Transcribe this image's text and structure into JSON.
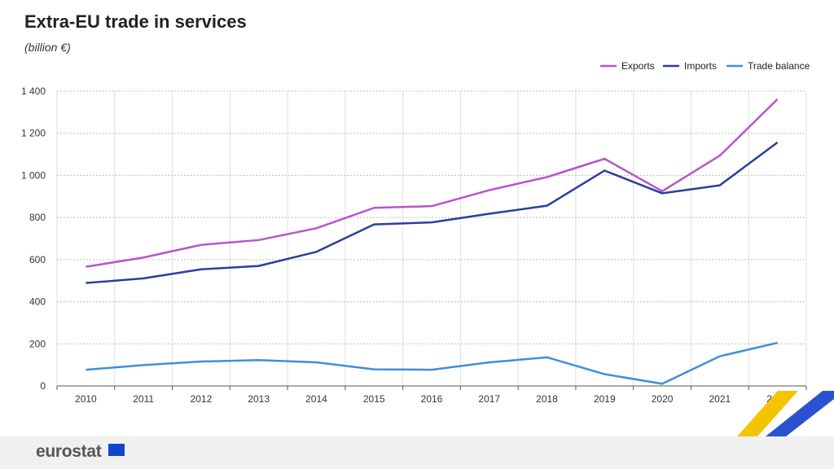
{
  "chart_data": {
    "type": "line",
    "title": "Extra-EU trade in services",
    "subtitle": "(billion €)",
    "categories": [
      "2010",
      "2011",
      "2012",
      "2013",
      "2014",
      "2015",
      "2016",
      "2017",
      "2018",
      "2019",
      "2020",
      "2021",
      "2022"
    ],
    "series": [
      {
        "name": "Exports",
        "color": "#b656c7",
        "values": [
          566,
          610,
          670,
          693,
          749,
          846,
          854,
          930,
          992,
          1079,
          925,
          1094,
          1362
        ]
      },
      {
        "name": "Imports",
        "color": "#2a3f9c",
        "values": [
          489,
          511,
          554,
          570,
          637,
          767,
          777,
          818,
          856,
          1023,
          915,
          953,
          1157
        ]
      },
      {
        "name": "Trade balance",
        "color": "#3f8fd8",
        "values": [
          77,
          99,
          116,
          123,
          112,
          79,
          77,
          112,
          136,
          56,
          10,
          141,
          205
        ]
      }
    ],
    "yticks": [
      "0",
      "200",
      "400",
      "600",
      "800",
      "1 000",
      "1 200",
      "1 400"
    ],
    "ylim": [
      0,
      1400
    ],
    "legend": "top-right",
    "grid": true
  },
  "footer": {
    "logo": "eurostat",
    "logo_icon": "eu-flag-icon"
  }
}
